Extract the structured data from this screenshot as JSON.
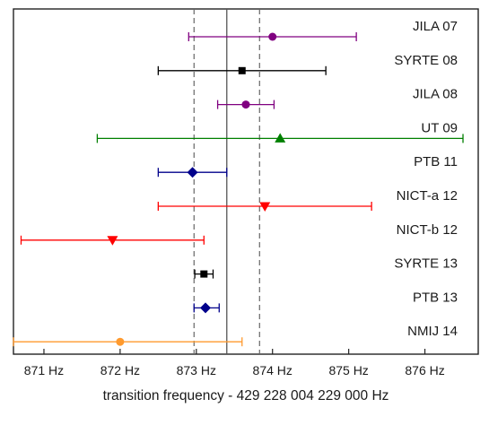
{
  "chart_data": {
    "type": "scatter",
    "xlabel": "transition frequency - 429 228 004 229 000 Hz",
    "ylabel": "",
    "xlim": [
      870.6,
      876.7
    ],
    "x_ticks": [
      871,
      872,
      873,
      874,
      875,
      876
    ],
    "x_tick_labels": [
      "871 Hz",
      "872 Hz",
      "873 Hz",
      "874 Hz",
      "875 Hz",
      "876 Hz"
    ],
    "grid": false,
    "reference_lines": {
      "solid": 873.4,
      "dashed": [
        872.97,
        873.83
      ]
    },
    "points": [
      {
        "label": "JILA 07",
        "x": 874.0,
        "err_low": 872.9,
        "err_high": 875.1,
        "marker": "circle",
        "color": "#800080"
      },
      {
        "label": "SYRTE 08",
        "x": 873.6,
        "err_low": 872.5,
        "err_high": 874.7,
        "marker": "square",
        "color": "#000000"
      },
      {
        "label": "JILA 08",
        "x": 873.65,
        "err_low": 873.28,
        "err_high": 874.02,
        "marker": "circle",
        "color": "#800080"
      },
      {
        "label": "UT 09",
        "x": 874.1,
        "err_low": 871.7,
        "err_high": 876.5,
        "marker": "triangle-up",
        "color": "#008000"
      },
      {
        "label": "PTB 11",
        "x": 872.95,
        "err_low": 872.5,
        "err_high": 873.4,
        "marker": "diamond",
        "color": "#00008b"
      },
      {
        "label": "NICT-a 12",
        "x": 873.9,
        "err_low": 872.5,
        "err_high": 875.3,
        "marker": "triangle-down",
        "color": "#ff0000"
      },
      {
        "label": "NICT-b 12",
        "x": 871.9,
        "err_low": 870.7,
        "err_high": 873.1,
        "marker": "triangle-down",
        "color": "#ff0000"
      },
      {
        "label": "SYRTE 13",
        "x": 873.1,
        "err_low": 872.98,
        "err_high": 873.22,
        "marker": "square",
        "color": "#000000"
      },
      {
        "label": "PTB 13",
        "x": 873.12,
        "err_low": 872.97,
        "err_high": 873.3,
        "marker": "diamond",
        "color": "#00008b"
      },
      {
        "label": "NMIJ 14",
        "x": 872.0,
        "err_low": 870.6,
        "err_high": 873.6,
        "marker": "circle",
        "color": "#ff9a2e"
      }
    ]
  }
}
